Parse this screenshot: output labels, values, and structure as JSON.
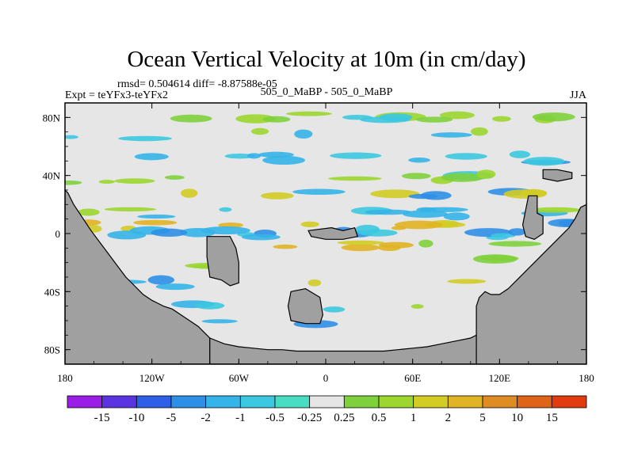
{
  "chart_data": {
    "type": "heatmap",
    "title": "Ocean Vertical Velocity at 10m (in cm/day)",
    "stats": "rmsd= 0.504614 diff= -8.87588e-05",
    "left_label": "Expt = teYFx3-teYFx2",
    "center_label": "505_0_MaBP - 505_0_MaBP",
    "right_label": "JJA",
    "xlabel": "",
    "ylabel": "",
    "x_ticks": [
      {
        "lon": -180,
        "label": "180"
      },
      {
        "lon": -120,
        "label": "120W"
      },
      {
        "lon": -60,
        "label": "60W"
      },
      {
        "lon": 0,
        "label": "0"
      },
      {
        "lon": 60,
        "label": "60E"
      },
      {
        "lon": 120,
        "label": "120E"
      },
      {
        "lon": 180,
        "label": "180"
      }
    ],
    "y_ticks": [
      {
        "lat": 80,
        "label": "80N"
      },
      {
        "lat": 40,
        "label": "40N"
      },
      {
        "lat": 0,
        "label": "0"
      },
      {
        "lat": -40,
        "label": "40S"
      },
      {
        "lat": -80,
        "label": "80S"
      }
    ],
    "xlim": [
      -180,
      180
    ],
    "ylim": [
      -90,
      90
    ],
    "colorbar": {
      "labels": [
        "-15",
        "-10",
        "-5",
        "-2",
        "-1",
        "-0.5",
        "-0.25",
        "0.25",
        "0.5",
        "1",
        "2",
        "5",
        "10",
        "15"
      ],
      "colors": [
        "#9a1ee6",
        "#5a34e0",
        "#2f5fe6",
        "#2e8fe6",
        "#34b4e8",
        "#3cc8e0",
        "#48dcc2",
        "#e6e6e6",
        "#7ed03c",
        "#9cd62e",
        "#d2cc24",
        "#e0b424",
        "#e08c24",
        "#e06418",
        "#e03c10"
      ]
    },
    "land_color": "#a0a0a0",
    "neutral_color": "#e6e6e6",
    "land_regions": [
      {
        "name": "western-continent",
        "lon": [
          -180,
          -178,
          -174,
          -170,
          -166,
          -162,
          -156,
          -150,
          -144,
          -138,
          -132,
          -126,
          -120,
          -116,
          -112,
          -106,
          -100,
          -94,
          -88,
          -84,
          -80,
          -80,
          -180
        ],
        "lat": [
          30,
          28,
          20,
          14,
          8,
          2,
          -6,
          -14,
          -22,
          -30,
          -36,
          -42,
          -46,
          -48,
          -50,
          -52,
          -56,
          -60,
          -64,
          -68,
          -72,
          -90,
          -90
        ]
      },
      {
        "name": "antarctic-rim",
        "lon": [
          -80,
          -70,
          -60,
          -50,
          -40,
          -30,
          -20,
          -10,
          0,
          10,
          20,
          30,
          40,
          50,
          60,
          70,
          80,
          90,
          100,
          104,
          104,
          -80
        ],
        "lat": [
          -72,
          -76,
          -78,
          -79,
          -80,
          -80,
          -81,
          -81,
          -81,
          -81,
          -81,
          -81,
          -81,
          -80,
          -79,
          -78,
          -76,
          -74,
          -72,
          -70,
          -90,
          -90
        ]
      },
      {
        "name": "eastern-continent",
        "lon": [
          180,
          180,
          176,
          172,
          168,
          162,
          156,
          150,
          144,
          138,
          132,
          126,
          120,
          114,
          110,
          106,
          104,
          104,
          180
        ],
        "lat": [
          -90,
          20,
          18,
          10,
          4,
          -2,
          -8,
          -14,
          -20,
          -26,
          -32,
          -38,
          -42,
          -42,
          -40,
          -44,
          -50,
          -90,
          -90
        ]
      },
      {
        "name": "central-island",
        "lon": [
          -82,
          -66,
          -62,
          -60,
          -60,
          -66,
          -72,
          -80,
          -82
        ],
        "lat": [
          -2,
          -2,
          -10,
          -20,
          -34,
          -36,
          -32,
          -30,
          -16
        ]
      },
      {
        "name": "southern-island",
        "lon": [
          -24,
          -14,
          -4,
          -2,
          -4,
          -14,
          -24,
          -26
        ],
        "lat": [
          -40,
          -38,
          -44,
          -56,
          -62,
          -62,
          -60,
          -50
        ]
      },
      {
        "name": "equatorial-island",
        "lon": [
          -12,
          4,
          12,
          20,
          22,
          12,
          0,
          -10
        ],
        "lat": [
          2,
          4,
          2,
          4,
          -2,
          -4,
          -4,
          -2
        ]
      },
      {
        "name": "northeast-islet",
        "lon": [
          150,
          160,
          170,
          170,
          160,
          150
        ],
        "lat": [
          44,
          44,
          42,
          38,
          36,
          38
        ]
      },
      {
        "name": "east-peninsula",
        "lon": [
          140,
          146,
          146,
          150,
          150,
          144,
          138,
          136
        ],
        "lat": [
          26,
          26,
          14,
          12,
          0,
          -4,
          -2,
          6
        ]
      }
    ]
  }
}
